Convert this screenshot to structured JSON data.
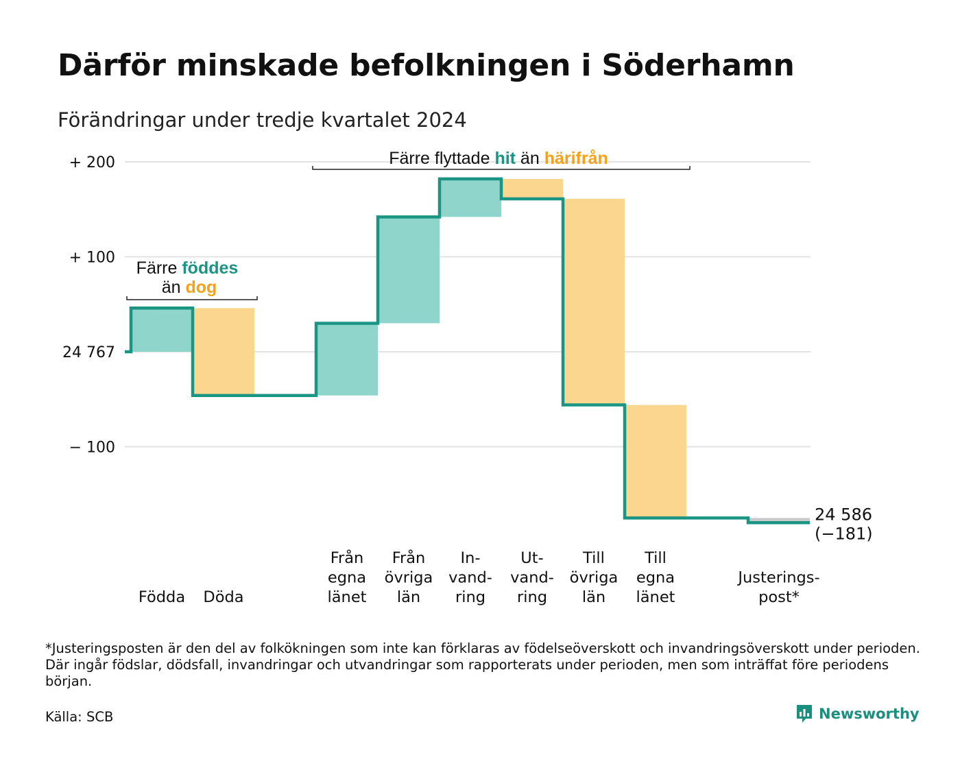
{
  "title": "Därför minskade befolkningen i Söderhamn",
  "subtitle": "Förändringar under tredje kvartalet 2024",
  "footnote": "*Justeringsposten är den del av folkökningen som inte kan förklaras av födelseöverskott och invandringsöverskott under perioden. Där ingår födslar, dödsfall, invandringar och utvandringar som rapporterats under perioden, men som inträffat före periodens början.",
  "source": "Källa: SCB",
  "brand": {
    "name": "Newsworthy",
    "icon": "newsworthy-logo-icon"
  },
  "colors": {
    "positive": "#8fd5cb",
    "negative": "#fad68f",
    "line": "#1a9583",
    "neutral": "#c9c9c9",
    "grid": "#e3e3e3",
    "accent_teal": "#1a9583",
    "accent_orange": "#f5a21b"
  },
  "annotations": [
    {
      "id": "births",
      "parts": [
        {
          "text": "Färre ",
          "style": "plain"
        },
        {
          "text": "föddes",
          "style": "teal"
        }
      ],
      "parts2": [
        {
          "text": "än ",
          "style": "plain"
        },
        {
          "text": "dog",
          "style": "orange"
        }
      ]
    },
    {
      "id": "migration",
      "parts": [
        {
          "text": "Färre flyttade ",
          "style": "plain"
        },
        {
          "text": "hit",
          "style": "teal"
        },
        {
          "text": " än ",
          "style": "plain"
        },
        {
          "text": "härifrån",
          "style": "orange"
        }
      ]
    }
  ],
  "chart_data": {
    "type": "waterfall",
    "start_value": 24767,
    "start_label": "24 767",
    "end_label": "24 586",
    "end_change_label": "(−181)",
    "y_ticks": [
      {
        "value": 200,
        "label": "+ 200"
      },
      {
        "value": 100,
        "label": "+ 100"
      },
      {
        "value": 0,
        "label": "24 767"
      },
      {
        "value": -100,
        "label": "− 100"
      }
    ],
    "ylim": [
      -190,
      210
    ],
    "categories": [
      {
        "label": [
          "Födda"
        ],
        "change": 46
      },
      {
        "label": [
          "Döda"
        ],
        "change": -92
      },
      {
        "label": [],
        "change": 0
      },
      {
        "label": [
          "Från",
          "egna",
          "länet"
        ],
        "change": 76
      },
      {
        "label": [
          "Från",
          "övriga",
          "län"
        ],
        "change": 112
      },
      {
        "label": [
          "In-",
          "vand-",
          "ring"
        ],
        "change": 40
      },
      {
        "label": [
          "Ut-",
          "vand-",
          "ring"
        ],
        "change": -21
      },
      {
        "label": [
          "Till",
          "övriga",
          "län"
        ],
        "change": -217
      },
      {
        "label": [
          "Till",
          "egna",
          "länet"
        ],
        "change": -119
      },
      {
        "label": [],
        "change": 0
      },
      {
        "label": [
          "Justerings-",
          "post*"
        ],
        "change": -5
      }
    ]
  }
}
